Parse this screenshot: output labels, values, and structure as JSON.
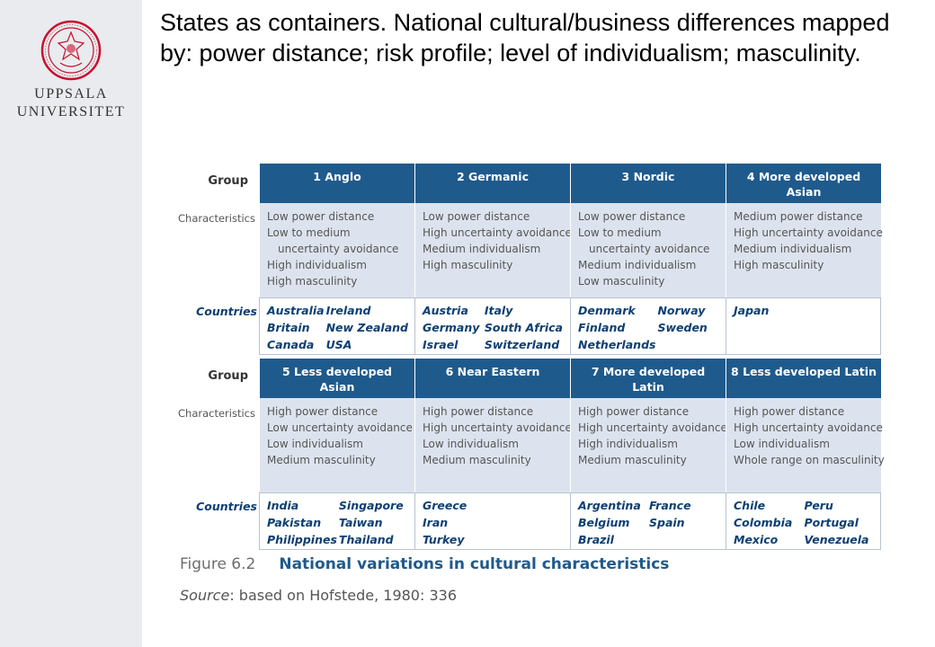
{
  "sidebar": {
    "logo_icon": "uppsala-seal-icon",
    "logo_color": "#c8102e",
    "university_line1": "UPPSALA",
    "university_line2": "UNIVERSITET"
  },
  "slide": {
    "title": "States as containers. National cultural/business differences mapped by: power distance; risk profile; level of individualism; masculinity."
  },
  "table": {
    "row_labels": {
      "group": "Group",
      "characteristics": "Characteristics",
      "countries": "Countries"
    },
    "blocks": [
      {
        "groups": [
          {
            "name": "1 Anglo",
            "characteristics": [
              "Low power distance",
              "Low to medium",
              "uncertainty avoidance",
              "High individualism",
              "High masculinity"
            ],
            "countries": [
              "Australia",
              "Ireland",
              "Britain",
              "New Zealand",
              "Canada",
              "USA"
            ]
          },
          {
            "name": "2 Germanic",
            "characteristics": [
              "Low power distance",
              "High uncertainty avoidance",
              "Medium individualism",
              "High masculinity"
            ],
            "countries": [
              "Austria",
              "Italy",
              "Germany",
              "South Africa",
              "Israel",
              "Switzerland"
            ]
          },
          {
            "name": "3 Nordic",
            "characteristics": [
              "Low power distance",
              "Low to medium",
              "uncertainty avoidance",
              "Medium individualism",
              "Low masculinity"
            ],
            "countries": [
              "Denmark",
              "Norway",
              "Finland",
              "Sweden",
              "Netherlands",
              ""
            ]
          },
          {
            "name": "4 More developed Asian",
            "characteristics": [
              "Medium power distance",
              "High uncertainty avoidance",
              "Medium individualism",
              "High masculinity"
            ],
            "countries": [
              "Japan"
            ]
          }
        ]
      },
      {
        "groups": [
          {
            "name": "5 Less developed Asian",
            "characteristics": [
              "High power distance",
              "Low uncertainty avoidance",
              "Low individualism",
              "Medium masculinity"
            ],
            "countries": [
              "India",
              "Singapore",
              "Pakistan",
              "Taiwan",
              "Philippines",
              "Thailand"
            ]
          },
          {
            "name": "6 Near Eastern",
            "characteristics": [
              "High power distance",
              "High uncertainty avoidance",
              "Low individualism",
              "Medium masculinity"
            ],
            "countries": [
              "Greece",
              "",
              "Iran",
              "",
              "Turkey",
              ""
            ]
          },
          {
            "name": "7 More developed Latin",
            "characteristics": [
              "High power distance",
              "High uncertainty avoidance",
              "High individualism",
              "Medium masculinity"
            ],
            "countries": [
              "Argentina",
              "France",
              "Belgium",
              "Spain",
              "Brazil",
              ""
            ]
          },
          {
            "name": "8 Less developed Latin",
            "characteristics": [
              "High power distance",
              "High uncertainty avoidance",
              "Low individualism",
              "Whole range on masculinity"
            ],
            "countries": [
              "Chile",
              "Peru",
              "Colombia",
              "Portugal",
              "Mexico",
              "Venezuela"
            ]
          }
        ]
      }
    ]
  },
  "caption": {
    "figure_number": "Figure 6.2",
    "figure_title": "National variations in cultural characteristics",
    "source_label": "Source",
    "source_text": ": based on Hofstede, 1980: 336"
  },
  "colors": {
    "header_bg": "#1f5a8c",
    "characteristics_bg": "#dde3ee",
    "country_text": "#0d3f73"
  }
}
